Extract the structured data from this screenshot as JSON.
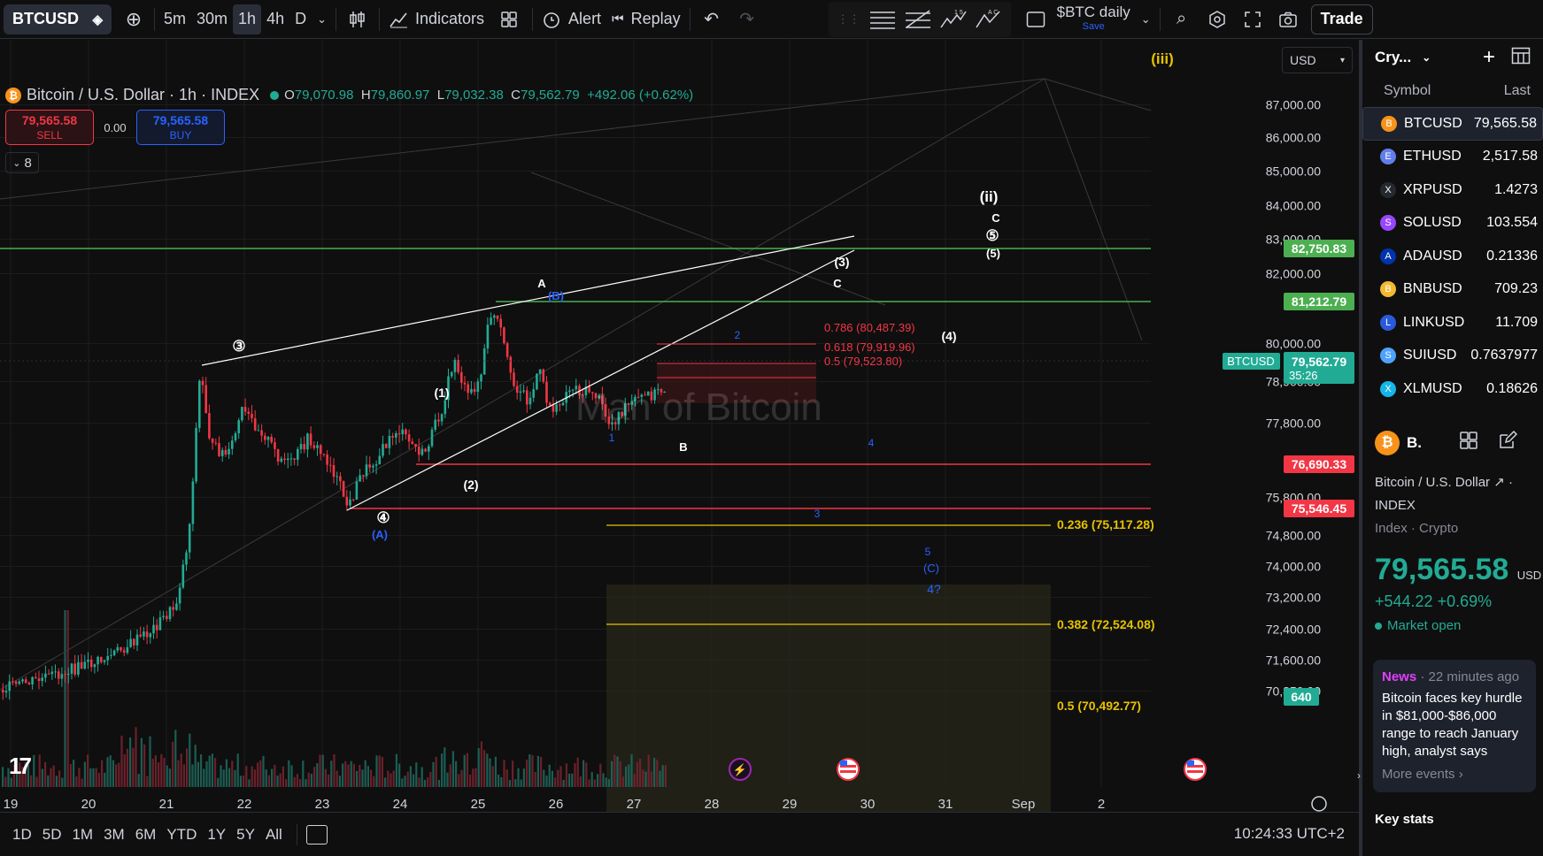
{
  "topbar": {
    "symbol": "BTCUSD",
    "timeframes": [
      "5m",
      "30m",
      "1h",
      "4h",
      "D"
    ],
    "active_tf": "1h",
    "indicators": "Indicators",
    "alert": "Alert",
    "replay": "Replay",
    "layout_name": "$BTC daily",
    "layout_save": "Save",
    "trade": "Trade"
  },
  "legend": {
    "title": "Bitcoin / U.S. Dollar · 1h · INDEX",
    "o_label": "O",
    "o": "79,070.98",
    "h_label": "H",
    "h": "79,860.97",
    "l_label": "L",
    "l": "79,032.38",
    "c_label": "C",
    "c": "79,562.79",
    "change": "+492.06 (+0.62%)"
  },
  "trade": {
    "sell_price": "79,565.58",
    "sell_label": "SELL",
    "spread": "0.00",
    "buy_price": "79,565.58",
    "buy_label": "BUY"
  },
  "indicator_count": "8",
  "currency": "USD",
  "watermark": "Man of Bitcoin",
  "price_axis": [
    "87,000.00",
    "86,000.00",
    "85,000.00",
    "84,000.00",
    "83,000.00",
    "82,000.00",
    "80,000.00",
    "78,900.00",
    "77,800.00",
    "75,800.00",
    "74,800.00",
    "74,000.00",
    "73,200.00",
    "72,400.00",
    "71,600.00",
    "70,850.00"
  ],
  "price_tags": {
    "green1": "82,750.83",
    "green2": "81,212.79",
    "btc_label": "BTCUSD",
    "btc_price": "79,562.79",
    "btc_countdown": "35:26",
    "red1": "76,690.33",
    "red2": "75,546.45",
    "volume": "640"
  },
  "fib": {
    "f786": "0.786 (80,487.39)",
    "f618": "0.618 (79,919.96)",
    "f05": "0.5 (79,523.80)",
    "f236": "0.236 (75,117.28)",
    "f382": "0.382 (72,524.08)",
    "f05b": "0.5 (70,492.77)"
  },
  "waves": {
    "iii": "(iii)",
    "ii": "(ii)",
    "c_top": "C",
    "c5": "⑤",
    "c5b": "(5)",
    "w3": "(3)",
    "wc": "C",
    "w4": "(4)",
    "wA": "A",
    "wB_blue": "(B)",
    "w3c": "③",
    "w1p": "(1)",
    "w2p": "(2)",
    "w4c": "④",
    "wA_blue": "(A)",
    "wB": "B",
    "b1": "1",
    "b2": "2",
    "b3": "3",
    "b4": "4",
    "b5": "5",
    "bC": "(C)",
    "b4q": "4?"
  },
  "time_axis": [
    "19",
    "20",
    "21",
    "22",
    "23",
    "24",
    "25",
    "26",
    "27",
    "28",
    "29",
    "30",
    "31",
    "Sep",
    "2"
  ],
  "bottombar": {
    "ranges": [
      "1D",
      "5D",
      "1M",
      "3M",
      "6M",
      "YTD",
      "1Y",
      "5Y",
      "All"
    ],
    "clock": "10:24:33 UTC+2"
  },
  "watchlist": {
    "title": "Cry...",
    "col_symbol": "Symbol",
    "col_last": "Last",
    "items": [
      {
        "sym": "BTCUSD",
        "last": "79,565.58",
        "color": "#f7931a",
        "icon": "btc-icon"
      },
      {
        "sym": "ETHUSD",
        "last": "2,517.58",
        "color": "#627eea",
        "icon": "eth-icon"
      },
      {
        "sym": "XRPUSD",
        "last": "1.4273",
        "color": "#23292f",
        "icon": "xrp-icon"
      },
      {
        "sym": "SOLUSD",
        "last": "103.554",
        "color": "#9945ff",
        "icon": "sol-icon"
      },
      {
        "sym": "ADAUSD",
        "last": "0.21336",
        "color": "#0033ad",
        "icon": "ada-icon"
      },
      {
        "sym": "BNBUSD",
        "last": "709.23",
        "color": "#f3ba2f",
        "icon": "bnb-icon"
      },
      {
        "sym": "LINKUSD",
        "last": "11.709",
        "color": "#2a5ada",
        "icon": "link-icon"
      },
      {
        "sym": "SUIUSD",
        "last": "0.7637977",
        "color": "#4da2ff",
        "icon": "sui-icon"
      },
      {
        "sym": "XLMUSD",
        "last": "0.18626",
        "color": "#14b6e7",
        "icon": "xlm-icon"
      }
    ]
  },
  "details": {
    "short": "B.",
    "name": "Bitcoin / U.S. Dollar",
    "exch": "INDEX",
    "cat": "Index · Crypto",
    "price": "79,565.58",
    "currency_suffix": "USD",
    "change": "+544.22  +0.69%",
    "market": "Market open"
  },
  "news": {
    "label": "News",
    "time": "· 22 minutes ago",
    "text": "Bitcoin faces key hurdle in $81,000-$86,000 range to reach January high, analyst says",
    "more": "More events ›"
  },
  "keystats": "Key stats",
  "colors": {
    "up": "#22ab94",
    "down": "#f23645",
    "fib_red": "#f23645",
    "fib_yellow": "#e6c200",
    "green_line": "#4caf50",
    "blue_wave": "#2962ff"
  }
}
